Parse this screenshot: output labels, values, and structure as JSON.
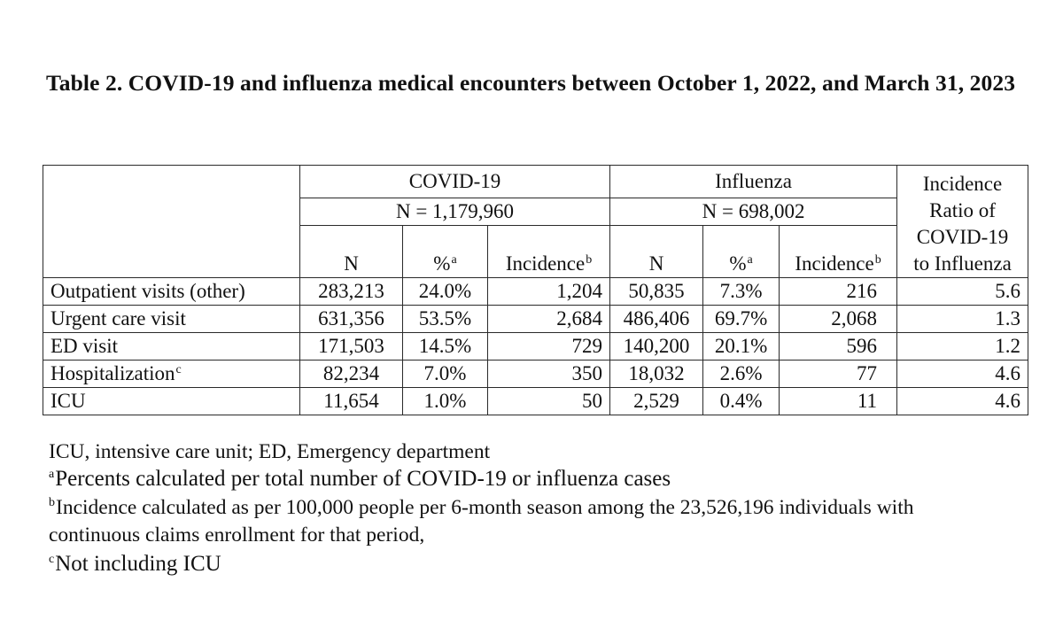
{
  "title": "Table 2. COVID-19 and influenza medical encounters between October 1, 2022, and March 31, 2023",
  "groups": {
    "covid": {
      "name": "COVID-19",
      "n_label": "N = 1,179,960"
    },
    "flu": {
      "name": "Influenza",
      "n_label": "N = 698,002"
    },
    "ratio": {
      "line1": "Incidence",
      "line2": "Ratio of",
      "line3": "COVID-19",
      "line4": "to Influenza"
    }
  },
  "columns": {
    "n": "N",
    "pct": "%",
    "pct_sup": "a",
    "incidence": "Incidence",
    "incidence_sup": "b"
  },
  "rows": [
    {
      "label": "Outpatient visits (other)",
      "label_sup": "",
      "covid_n": "283,213",
      "covid_pct": "24.0%",
      "covid_inc": "1,204",
      "flu_n": "50,835",
      "flu_pct": "7.3%",
      "flu_inc": "216",
      "ratio": "5.6"
    },
    {
      "label": "Urgent care visit",
      "label_sup": "",
      "covid_n": "631,356",
      "covid_pct": "53.5%",
      "covid_inc": "2,684",
      "flu_n": "486,406",
      "flu_pct": "69.7%",
      "flu_inc": "2,068",
      "ratio": "1.3"
    },
    {
      "label": "ED visit",
      "label_sup": "",
      "covid_n": "171,503",
      "covid_pct": "14.5%",
      "covid_inc": "729",
      "flu_n": "140,200",
      "flu_pct": "20.1%",
      "flu_inc": "596",
      "ratio": "1.2"
    },
    {
      "label": "Hospitalization",
      "label_sup": "c",
      "covid_n": "82,234",
      "covid_pct": "7.0%",
      "covid_inc": "350",
      "flu_n": "18,032",
      "flu_pct": "2.6%",
      "flu_inc": "77",
      "ratio": "4.6"
    },
    {
      "label": "ICU",
      "label_sup": "",
      "covid_n": "11,654",
      "covid_pct": "1.0%",
      "covid_inc": "50",
      "flu_n": "2,529",
      "flu_pct": "0.4%",
      "flu_inc": "11",
      "ratio": "4.6"
    }
  ],
  "notes": {
    "abbrev": "ICU, intensive care unit; ED, Emergency department",
    "a_sup": "a",
    "a_text": "Percents calculated per total number of COVID-19 or influenza cases",
    "b_sup": "b",
    "b_text": "Incidence calculated as per 100,000 people per 6-month season among the 23,526,196 individuals with",
    "b_text_cont": "continuous claims enrollment for that period,",
    "c_sup": "c",
    "c_text": "Not including ICU"
  }
}
